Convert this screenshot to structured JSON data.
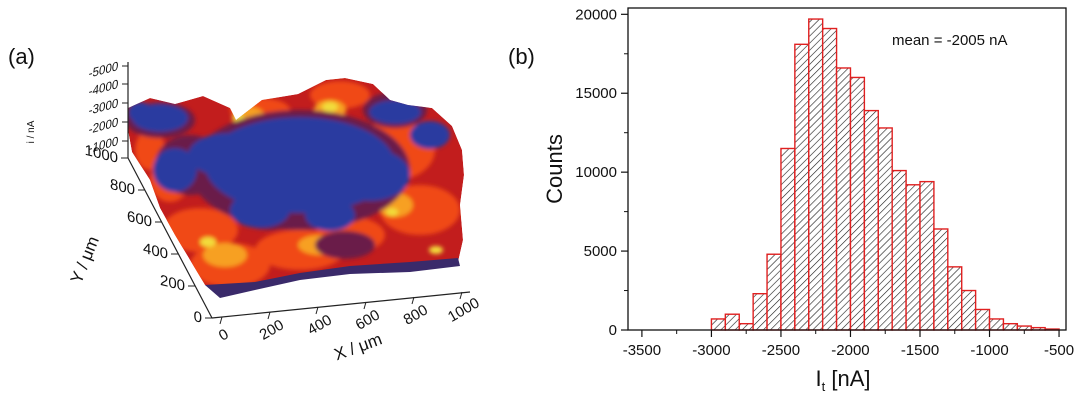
{
  "panels": {
    "a": "(a)",
    "b": "(b)"
  },
  "chart_data": [
    {
      "type": "surface",
      "panel": "(a)",
      "z_axis_label": "i / nA",
      "z_ticks": [
        "-5000",
        "-4000",
        "-3000",
        "-2000",
        "-1000"
      ],
      "y_axis_label": "Y / μm",
      "y_ticks": [
        "0",
        "200",
        "400",
        "600",
        "800",
        "1000"
      ],
      "x_axis_label": "X / μm",
      "x_ticks": [
        "0",
        "200",
        "400",
        "600",
        "800",
        "1000"
      ],
      "x_range": [
        0,
        1000
      ],
      "y_range": [
        0,
        1000
      ],
      "colormap": [
        "#2b3aa0",
        "#6a1a4a",
        "#c21d1d",
        "#f04a14",
        "#f7a020",
        "#f2dc3a"
      ]
    },
    {
      "type": "bar",
      "panel": "(b)",
      "annotation": "mean = -2005 nA",
      "xlabel_main": "I",
      "xlabel_sub": "t",
      "xlabel_unit": " [nA]",
      "ylabel": "Counts",
      "xlim": [
        -3600,
        -450
      ],
      "ylim": [
        0,
        20400
      ],
      "x_ticks": [
        -3500,
        -3000,
        -2500,
        -2000,
        -1500,
        -1000,
        -500
      ],
      "y_ticks": [
        0,
        5000,
        10000,
        15000,
        20000
      ],
      "bin_width": 100,
      "bin_starts": [
        -3000,
        -2900,
        -2800,
        -2700,
        -2600,
        -2500,
        -2400,
        -2300,
        -2200,
        -2100,
        -2000,
        -1900,
        -1800,
        -1700,
        -1600,
        -1500,
        -1400,
        -1300,
        -1200,
        -1100,
        -1000,
        -900,
        -800,
        -700,
        -600
      ],
      "values": [
        700,
        1000,
        400,
        2300,
        4800,
        11500,
        18100,
        19700,
        19100,
        16600,
        16000,
        13900,
        12800,
        10100,
        9200,
        9400,
        6400,
        4000,
        2500,
        1300,
        700,
        400,
        250,
        150,
        60
      ],
      "bar_color": "#e02020",
      "grid": false
    }
  ]
}
